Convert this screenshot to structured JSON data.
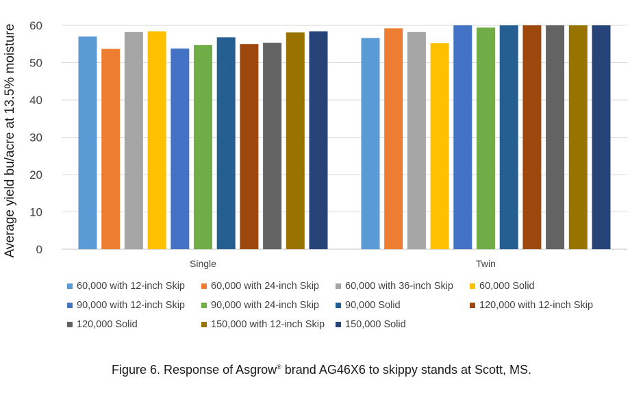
{
  "chart_data": {
    "type": "bar",
    "categories": [
      "Single",
      "Twin"
    ],
    "ylabel": "Average yield bu/acre at 13.5% moisture",
    "ylim": [
      0,
      60
    ],
    "yticks": [
      0,
      10,
      20,
      30,
      40,
      50,
      60
    ],
    "grid": true,
    "legend_placement": "bottom",
    "series": [
      {
        "name": "60,000 with 12-inch Skip",
        "color": "#5B9BD5",
        "values": [
          57.0,
          56.6
        ]
      },
      {
        "name": "60,000 with 24-inch Skip",
        "color": "#ED7D31",
        "values": [
          53.7,
          59.2
        ]
      },
      {
        "name": "60,000 with 36-inch Skip",
        "color": "#A5A5A5",
        "values": [
          58.2,
          58.2
        ]
      },
      {
        "name": "60,000 Solid",
        "color": "#FFC000",
        "values": [
          58.4,
          55.2
        ]
      },
      {
        "name": "90,000 with 12-inch Skip",
        "color": "#4472C4",
        "values": [
          53.8,
          60.0
        ]
      },
      {
        "name": "90,000 with 24-inch Skip",
        "color": "#70AD47",
        "values": [
          54.7,
          59.4
        ]
      },
      {
        "name": "90,000 Solid",
        "color": "#255E91",
        "values": [
          56.8,
          60.0
        ]
      },
      {
        "name": "120,000 with 12-inch Skip",
        "color": "#9E480E",
        "values": [
          55.0,
          60.0
        ]
      },
      {
        "name": "120,000 Solid",
        "color": "#636363",
        "values": [
          55.3,
          60.0
        ]
      },
      {
        "name": "150,000 with 12-inch Skip",
        "color": "#997300",
        "values": [
          58.1,
          60.0
        ]
      },
      {
        "name": "150,000 Solid",
        "color": "#264478",
        "values": [
          58.4,
          60.0
        ]
      }
    ]
  },
  "caption": {
    "prefix": "Figure 6. Response of  Asgrow",
    "mark": "®",
    "suffix": " brand AG46X6 to skippy stands at Scott, MS."
  }
}
